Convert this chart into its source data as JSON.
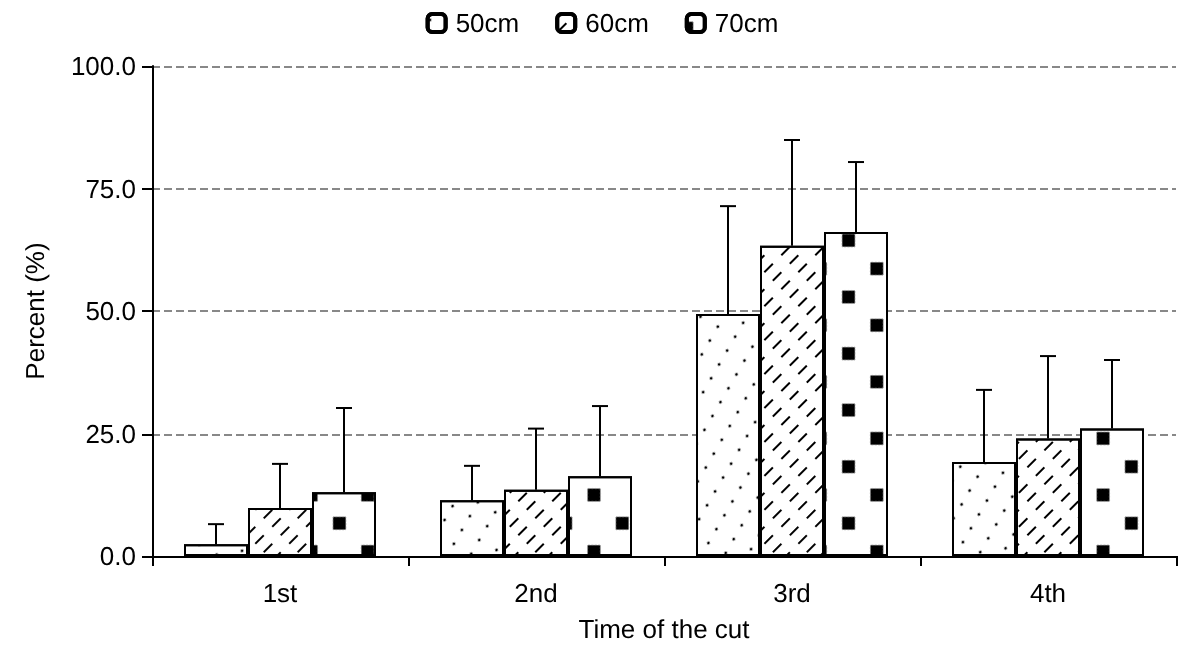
{
  "chart_data": {
    "type": "bar",
    "xlabel": "Time of the cut",
    "ylabel": "Percent (%)",
    "categories": [
      "1st",
      "2nd",
      "3rd",
      "4th"
    ],
    "series": [
      {
        "name": "50cm",
        "color": "#ffffff",
        "values": [
          2.4,
          11.4,
          49.4,
          19.2
        ],
        "errors": [
          [
            2.4,
            6.5
          ],
          [
            11.4,
            18.4
          ],
          [
            49.4,
            71.4
          ],
          [
            19.2,
            33.9
          ]
        ]
      },
      {
        "name": "60cm",
        "color": "#ffffff",
        "values": [
          9.8,
          13.5,
          63.3,
          24
        ],
        "errors": [
          [
            9.8,
            18.8
          ],
          [
            13.5,
            26
          ],
          [
            63.3,
            84.9
          ],
          [
            24,
            40.8
          ]
        ]
      },
      {
        "name": "70cm",
        "color": "#ffffff",
        "values": [
          13,
          16.3,
          66.1,
          26
        ],
        "errors": [
          [
            13,
            30.2
          ],
          [
            16.3,
            30.6
          ],
          [
            66.1,
            80.4
          ],
          [
            26,
            40
          ]
        ]
      }
    ],
    "ylim": [
      0,
      100
    ],
    "yticks": [
      {
        "value": 0,
        "label": "0.0"
      },
      {
        "value": 25,
        "label": "25.0"
      },
      {
        "value": 50,
        "label": "50.0"
      },
      {
        "value": 75,
        "label": "75.0"
      },
      {
        "value": 100,
        "label": "100.0"
      }
    ],
    "grid": "y",
    "legend": "top"
  }
}
